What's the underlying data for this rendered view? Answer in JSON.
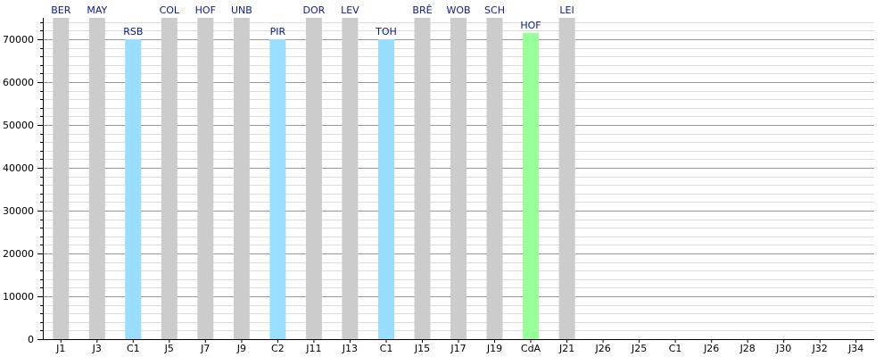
{
  "chart_data": {
    "type": "bar",
    "categories": [
      "J1",
      "J3",
      "C1",
      "J5",
      "J7",
      "J9",
      "C2",
      "J11",
      "J13",
      "C1",
      "J15",
      "J17",
      "J19",
      "CdA",
      "J21",
      "J26",
      "J25",
      "C1",
      "J26",
      "J28",
      "J30",
      "J32",
      "J34"
    ],
    "values": [
      75000,
      75000,
      70000,
      75000,
      75000,
      75000,
      70000,
      75000,
      75000,
      70000,
      75000,
      75000,
      75000,
      71500,
      75000,
      null,
      null,
      null,
      null,
      null,
      null,
      null,
      null
    ],
    "bar_labels": [
      "BER",
      "MAY",
      "RSB",
      "COL",
      "HOF",
      "UNB",
      "PIR",
      "DOR",
      "LEV",
      "TOH",
      "BRÊ",
      "WOB",
      "SCH",
      "HOF",
      "LEI",
      "",
      "",
      "",
      "",
      "",
      "",
      "",
      ""
    ],
    "bar_colors": [
      "#cccccc",
      "#cccccc",
      "#99ddff",
      "#cccccc",
      "#cccccc",
      "#cccccc",
      "#99ddff",
      "#cccccc",
      "#cccccc",
      "#99ddff",
      "#cccccc",
      "#cccccc",
      "#cccccc",
      "#99ff99",
      "#cccccc",
      "#cccccc",
      "#cccccc",
      "#cccccc",
      "#cccccc",
      "#cccccc",
      "#cccccc",
      "#cccccc",
      "#cccccc"
    ],
    "ylim": [
      0,
      75000
    ],
    "yticks": [
      0,
      10000,
      20000,
      30000,
      40000,
      50000,
      60000,
      70000
    ],
    "ytick_labels": [
      "0",
      "10000",
      "20000",
      "30000",
      "40000",
      "50000",
      "60000",
      "70000"
    ],
    "minor_grid_step": 2000,
    "grid": true,
    "title": "",
    "xlabel": "",
    "ylabel": ""
  },
  "colors": {
    "label_text": "#0b1a8f",
    "major_grid": "#999999",
    "minor_grid": "#dddddd",
    "axis": "#000000"
  }
}
